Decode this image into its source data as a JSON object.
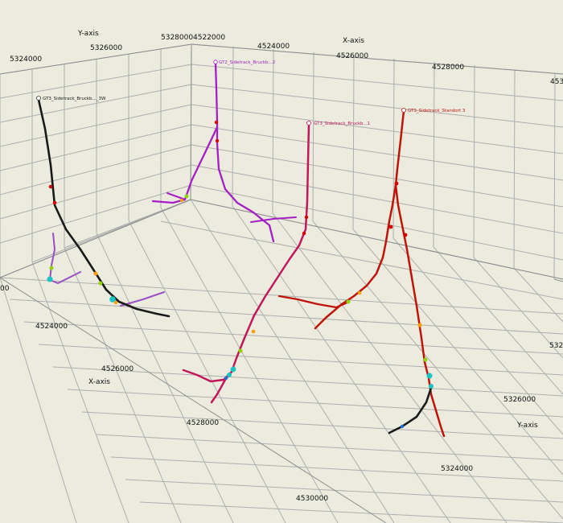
{
  "axes": {
    "x_axis_label": "X-axis",
    "y_axis_label": "Y-axis"
  },
  "ticks": {
    "top_y": [
      "5324000",
      "5326000",
      "5328000"
    ],
    "top_x": [
      "4522000",
      "4524000",
      "4526000",
      "4528000",
      "453"
    ],
    "left_partial": "00",
    "bottom_x": [
      "4524000",
      "4526000",
      "4528000",
      "4530000"
    ],
    "right_y": [
      "5324000",
      "5326000",
      "532"
    ]
  },
  "wells": [
    {
      "name": "GT3_Sidetrack_Bruckberg_3W",
      "label": "GT3_Sidetrack_Bruckb..._3W",
      "color": "#1a1a1a"
    },
    {
      "name": "GT2_Sidetrack_Bruckberg_2",
      "label": "GT2_Sidetrack_Bruckb...2",
      "color": "#a51fc4"
    },
    {
      "name": "GT3_Sidetrack_Bruckberg_1",
      "label": "GT3_Sidetrack_Bruckb...1",
      "color": "#c2185b"
    },
    {
      "name": "GT3_Sidetrack_Standort_3",
      "label": "GT3_Sidetrack_Standort 3",
      "color": "#c0140a"
    }
  ],
  "colors": {
    "background": "#ebebde",
    "grid": "#aeaeae",
    "marker_green": "#8dd400",
    "marker_cyan": "#19c4c4",
    "marker_orange": "#ff9a00"
  }
}
